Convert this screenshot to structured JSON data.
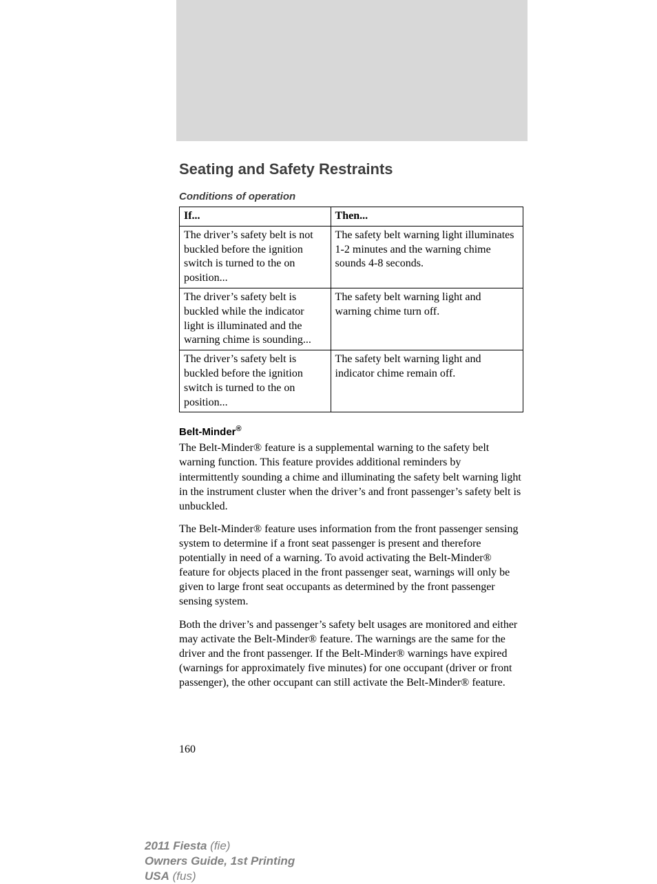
{
  "section_title": "Seating and Safety Restraints",
  "subsection_title": "Conditions of operation",
  "table": {
    "headers": {
      "if": "If...",
      "then": "Then..."
    },
    "rows": [
      {
        "if": "The driver’s safety belt is not buckled before the ignition switch is turned to the on position...",
        "then": "The safety belt warning light illuminates 1-2 minutes and the warning chime sounds 4-8 seconds."
      },
      {
        "if": "The driver’s safety belt is buckled while the indicator light is illuminated and the warning chime is sounding...",
        "then": "The safety belt warning light and warning chime turn off."
      },
      {
        "if": "The driver’s safety belt is buckled before the ignition switch is turned to the on position...",
        "then": "The safety belt warning light and indicator chime remain off."
      }
    ]
  },
  "belt_minder_heading": "Belt-Minder",
  "reg_symbol": "®",
  "paragraphs": {
    "p1": "The Belt-Minder® feature is a supplemental warning to the safety belt warning function. This feature provides additional reminders by intermittently sounding a chime and illuminating the safety belt warning light in the instrument cluster when the driver’s and front passenger’s safety belt is unbuckled.",
    "p2": "The Belt-Minder® feature uses information from the front passenger sensing system to determine if a front seat passenger is present and therefore potentially in need of a warning. To avoid activating the Belt-Minder® feature for objects placed in the front passenger seat, warnings will only be given to large front seat occupants as determined by the front passenger sensing system.",
    "p3": "Both the driver’s and passenger’s safety belt usages are monitored and either may activate the Belt-Minder® feature. The warnings are the same for the driver and the front passenger. If the Belt-Minder® warnings have expired (warnings for approximately five minutes) for one occupant (driver or front passenger), the other occupant can still activate the Belt-Minder® feature."
  },
  "page_number": "160",
  "footer": {
    "model": "2011 Fiesta",
    "model_code": "(fie)",
    "guide": "Owners Guide, 1st Printing",
    "market": "USA",
    "market_code": "(fus)"
  },
  "colors": {
    "gray_header": "#d8d8d8",
    "title_gray": "#3d3d3d",
    "footer_gray": "#808080",
    "text": "#000000",
    "border": "#000000",
    "background": "#ffffff"
  }
}
